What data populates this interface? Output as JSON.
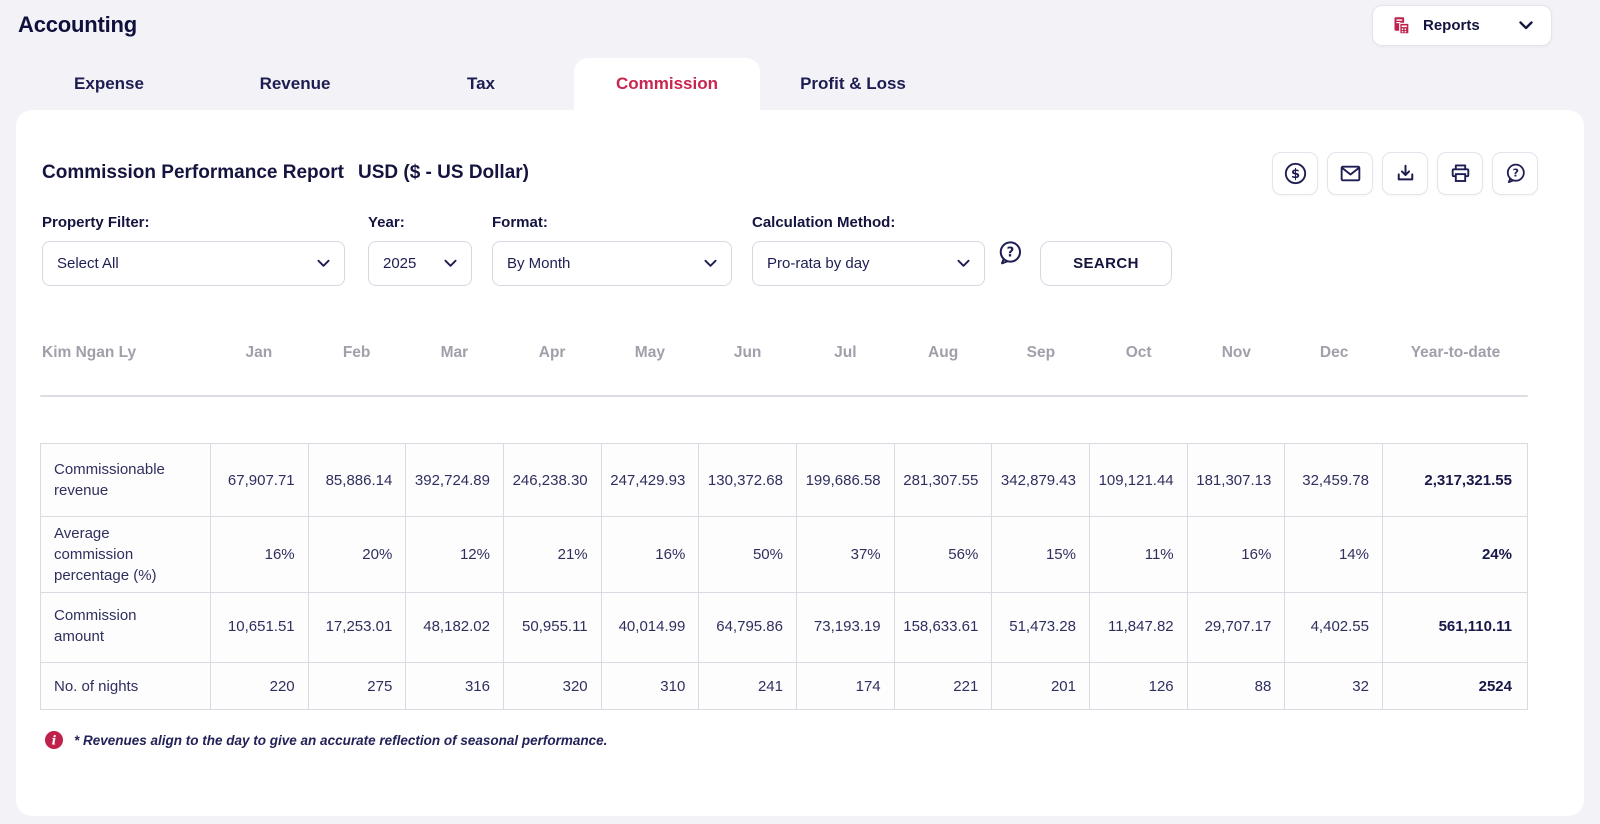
{
  "app": {
    "title": "Accounting"
  },
  "reports_menu": {
    "label": "Reports"
  },
  "tabs": {
    "active": "Commission",
    "items": [
      {
        "label": "Expense"
      },
      {
        "label": "Revenue"
      },
      {
        "label": "Tax"
      },
      {
        "label": "Commission"
      },
      {
        "label": "Profit & Loss"
      }
    ]
  },
  "report": {
    "title": "Commission Performance Report",
    "currency": "USD ($ - US Dollar)",
    "toolbar": [
      {
        "name": "currency-icon"
      },
      {
        "name": "email-icon"
      },
      {
        "name": "download-icon"
      },
      {
        "name": "print-icon"
      },
      {
        "name": "help-chat-icon"
      }
    ],
    "filters": {
      "property": {
        "label": "Property Filter:",
        "value": "Select All"
      },
      "year": {
        "label": "Year:",
        "value": "2025"
      },
      "format": {
        "label": "Format:",
        "value": "By Month"
      },
      "calculation": {
        "label": "Calculation Method:",
        "value": "Pro-rata by day"
      }
    },
    "search_button": "SEARCH",
    "footnote": "* Revenues align to the day to give an accurate reflection of seasonal performance."
  },
  "table": {
    "owner": "Kim Ngan Ly",
    "months": [
      "Jan",
      "Feb",
      "Mar",
      "Apr",
      "May",
      "Jun",
      "Jul",
      "Aug",
      "Sep",
      "Oct",
      "Nov",
      "Dec"
    ],
    "total_label": "Year-to-date",
    "rows": [
      {
        "label": "Commissionable revenue",
        "values": [
          "67,907.71",
          "85,886.14",
          "392,724.89",
          "246,238.30",
          "247,429.93",
          "130,372.68",
          "199,686.58",
          "281,307.55",
          "342,879.43",
          "109,121.44",
          "181,307.13",
          "32,459.78"
        ],
        "total": "2,317,321.55"
      },
      {
        "label": "Average commission percentage (%)",
        "values": [
          "16%",
          "20%",
          "12%",
          "21%",
          "16%",
          "50%",
          "37%",
          "56%",
          "15%",
          "11%",
          "16%",
          "14%"
        ],
        "total": "24%"
      },
      {
        "label": "Commission amount",
        "values": [
          "10,651.51",
          "17,253.01",
          "48,182.02",
          "50,955.11",
          "40,014.99",
          "64,795.86",
          "73,193.19",
          "158,633.61",
          "51,473.28",
          "11,847.82",
          "29,707.17",
          "4,402.55"
        ],
        "total": "561,110.11"
      },
      {
        "label": "No. of nights",
        "values": [
          "220",
          "275",
          "316",
          "320",
          "310",
          "241",
          "174",
          "221",
          "201",
          "126",
          "88",
          "32"
        ],
        "total": "2524"
      }
    ]
  },
  "colors": {
    "accent": "#c9254e",
    "navy": "#14143f",
    "header_gray": "#9fa0aa"
  }
}
